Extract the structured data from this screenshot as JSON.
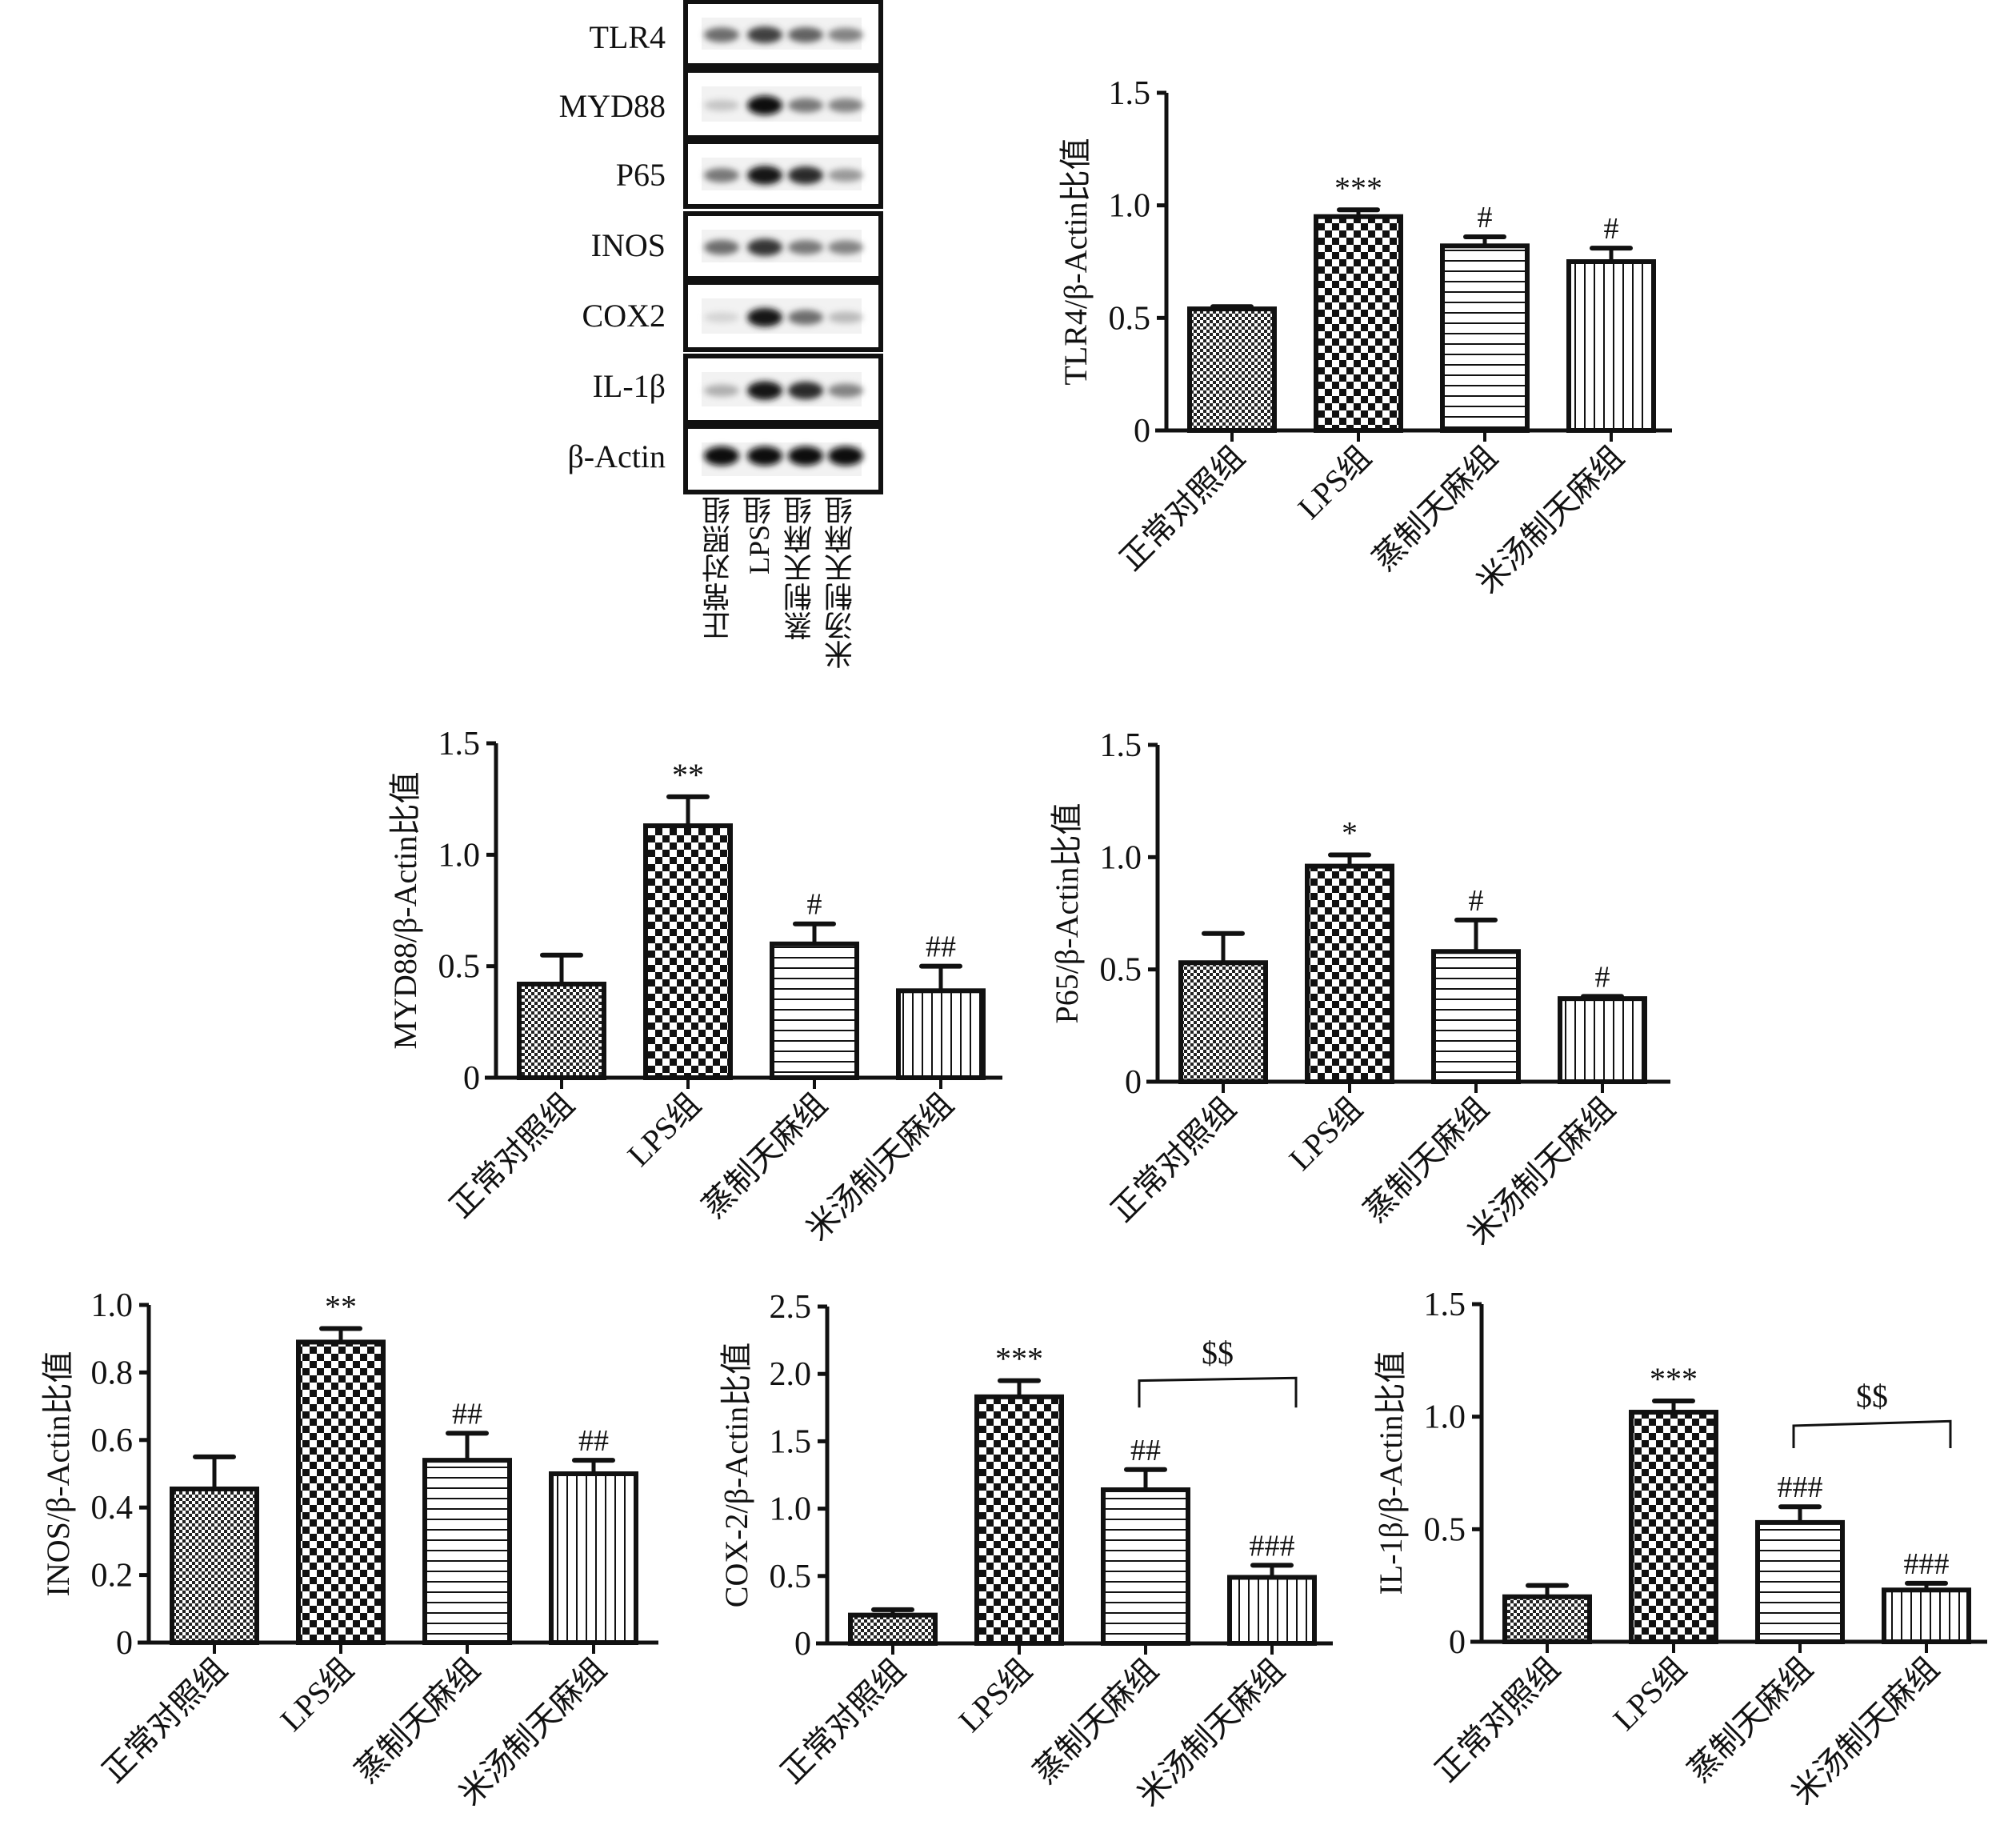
{
  "western_blot": {
    "proteins": [
      "TLR4",
      "MYD88",
      "P65",
      "INOS",
      "COX2",
      "IL-1β",
      "β-Actin"
    ],
    "lanes": [
      "正常对照组",
      "LPS组",
      "蒸制天麻组",
      "米汤制天麻组"
    ],
    "band_intensity": [
      [
        0.55,
        0.75,
        0.6,
        0.45
      ],
      [
        0.15,
        1.0,
        0.5,
        0.45
      ],
      [
        0.5,
        0.95,
        0.85,
        0.35
      ],
      [
        0.55,
        0.8,
        0.5,
        0.45
      ],
      [
        0.08,
        0.95,
        0.55,
        0.2
      ],
      [
        0.25,
        0.95,
        0.85,
        0.45
      ],
      [
        1.0,
        1.0,
        1.0,
        1.0
      ]
    ]
  },
  "chart_data": [
    {
      "type": "bar",
      "id": "tlr4",
      "ylabel": "TLR4/β-Actin比值",
      "categories": [
        "正常对照组",
        "LPS组",
        "蒸制天麻组",
        "米汤制天麻组"
      ],
      "values": [
        0.54,
        0.95,
        0.82,
        0.75
      ],
      "errors": [
        0.01,
        0.03,
        0.04,
        0.06
      ],
      "annotations": [
        "",
        "***",
        "#",
        "#"
      ],
      "ylim": [
        0,
        1.5
      ],
      "yticks": [
        "0",
        "0.5",
        "1.0",
        "1.5"
      ],
      "ytick_values": [
        0,
        0.5,
        1.0,
        1.5
      ],
      "bracket": null
    },
    {
      "type": "bar",
      "id": "myd88",
      "ylabel": "MYD88/β-Actin比值",
      "categories": [
        "正常对照组",
        "LPS组",
        "蒸制天麻组",
        "米汤制天麻组"
      ],
      "values": [
        0.42,
        1.13,
        0.6,
        0.39
      ],
      "errors": [
        0.13,
        0.13,
        0.09,
        0.11
      ],
      "annotations": [
        "",
        "**",
        "#",
        "##"
      ],
      "ylim": [
        0,
        1.5
      ],
      "yticks": [
        "0",
        "0.5",
        "1.0",
        "1.5"
      ],
      "ytick_values": [
        0,
        0.5,
        1.0,
        1.5
      ],
      "bracket": null
    },
    {
      "type": "bar",
      "id": "p65",
      "ylabel": "P65/β-Actin比值",
      "categories": [
        "正常对照组",
        "LPS组",
        "蒸制天麻组",
        "米汤制天麻组"
      ],
      "values": [
        0.53,
        0.96,
        0.58,
        0.37
      ],
      "errors": [
        0.13,
        0.05,
        0.14,
        0.01
      ],
      "annotations": [
        "",
        "*",
        "#",
        "#"
      ],
      "ylim": [
        0,
        1.5
      ],
      "yticks": [
        "0",
        "0.5",
        "1.0",
        "1.5"
      ],
      "ytick_values": [
        0,
        0.5,
        1.0,
        1.5
      ],
      "bracket": null
    },
    {
      "type": "bar",
      "id": "inos",
      "ylabel": "INOS/β-Actin比值",
      "categories": [
        "正常对照组",
        "LPS组",
        "蒸制天麻组",
        "米汤制天麻组"
      ],
      "values": [
        0.455,
        0.89,
        0.54,
        0.5
      ],
      "errors": [
        0.095,
        0.04,
        0.08,
        0.04
      ],
      "annotations": [
        "",
        "**",
        "##",
        "##"
      ],
      "ylim": [
        0,
        1.0
      ],
      "yticks": [
        "0",
        "0.2",
        "0.4",
        "0.6",
        "0.8",
        "1.0"
      ],
      "ytick_values": [
        0,
        0.2,
        0.4,
        0.6,
        0.8,
        1.0
      ],
      "bracket": null
    },
    {
      "type": "bar",
      "id": "cox2",
      "ylabel": "COX-2/β-Actin比值",
      "categories": [
        "正常对照组",
        "LPS组",
        "蒸制天麻组",
        "米汤制天麻组"
      ],
      "values": [
        0.21,
        1.83,
        1.14,
        0.49
      ],
      "errors": [
        0.04,
        0.12,
        0.15,
        0.09
      ],
      "annotations": [
        "",
        "***",
        "##",
        "###"
      ],
      "ylim": [
        0,
        2.5
      ],
      "yticks": [
        "0",
        "0.5",
        "1.0",
        "1.5",
        "2.0",
        "2.5"
      ],
      "ytick_values": [
        0,
        0.5,
        1.0,
        1.5,
        2.0,
        2.5
      ],
      "bracket": {
        "from": 2,
        "to": 3,
        "label": "$$",
        "y": 1.95,
        "y_end": 1.97,
        "leg": 1.75
      }
    },
    {
      "type": "bar",
      "id": "il1b",
      "ylabel": "IL-1β/β-Actin比值",
      "categories": [
        "正常对照组",
        "LPS组",
        "蒸制天麻组",
        "米汤制天麻组"
      ],
      "values": [
        0.2,
        1.02,
        0.53,
        0.23
      ],
      "errors": [
        0.05,
        0.05,
        0.07,
        0.03
      ],
      "annotations": [
        "",
        "***",
        "###",
        "###"
      ],
      "ylim": [
        0,
        1.5
      ],
      "yticks": [
        "0",
        "0.5",
        "1.0",
        "1.5"
      ],
      "ytick_values": [
        0,
        0.5,
        1.0,
        1.5
      ],
      "bracket": {
        "from": 2,
        "to": 3,
        "label": "$$",
        "y": 0.96,
        "y_end": 0.98,
        "leg": 0.86
      }
    }
  ],
  "colors": {
    "ink": "#111111",
    "background": "#ffffff"
  },
  "patterns": [
    "fine-checker",
    "coarse-checker",
    "horizontal-lines",
    "vertical-lines"
  ]
}
